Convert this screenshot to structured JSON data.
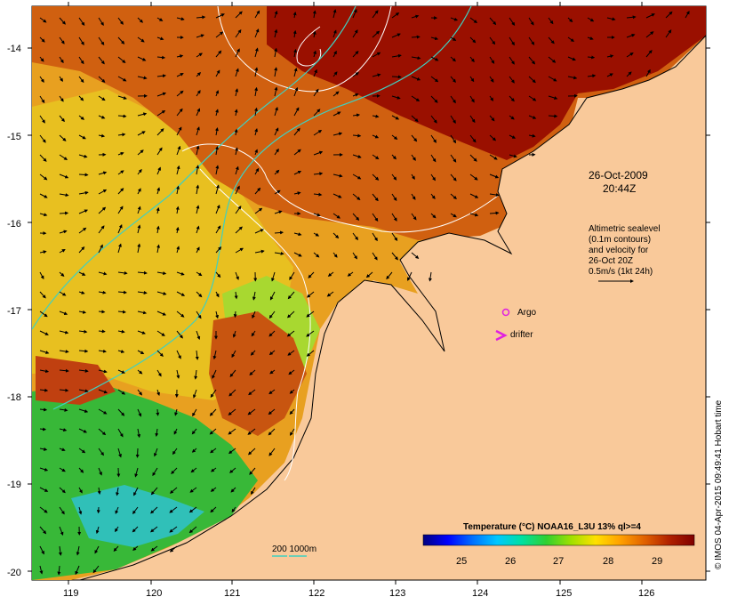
{
  "map": {
    "lon_ticks": [
      "119",
      "120",
      "121",
      "122",
      "123",
      "124",
      "125",
      "126"
    ],
    "lat_ticks": [
      "-14",
      "-15",
      "-16",
      "-17",
      "-18",
      "-19",
      "-20"
    ],
    "datetime_date": "26-Oct-2009",
    "datetime_time": "20:44Z",
    "altimetry_lines": [
      "Altimetric sealevel",
      "(0.1m contours)",
      "and velocity for",
      "26-Oct 20Z",
      "0.5m/s (1kt 24h)"
    ],
    "argo_label": "Argo",
    "drifter_label": "drifter",
    "bathymetry_label": "200  1000m",
    "colorbar": {
      "title": "Temperature (°C) NOAA16_L3U 13% ql>=4",
      "ticks": [
        "25",
        "26",
        "27",
        "28",
        "29"
      ],
      "colors": [
        "#000080",
        "#0000ff",
        "#0070ff",
        "#00c8ff",
        "#00e0a0",
        "#30d030",
        "#a0e000",
        "#ffe000",
        "#ffa000",
        "#e06000",
        "#b02000",
        "#800000"
      ]
    },
    "credit": "© IMOS 04-Apr-2015 09:49:41 Hobart time",
    "colors": {
      "land": "#f9c99a",
      "warm_dark": "#8b0a00",
      "warm": "#c4470a",
      "mid": "#e58a14",
      "yellow": "#f0c020",
      "green": "#3fbf3f",
      "cyan": "#33c0b0",
      "contour": "#ffffff",
      "isobath": "#3fd0c0",
      "marker": "#e020e0"
    }
  }
}
